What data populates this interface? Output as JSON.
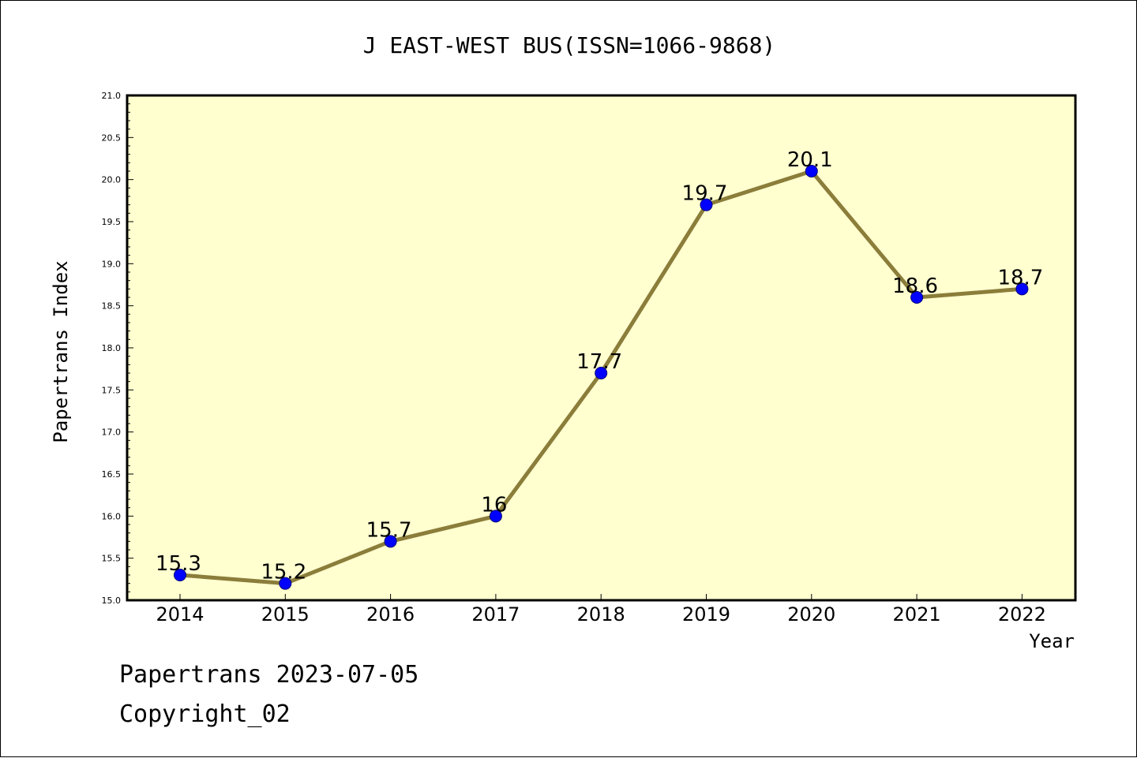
{
  "chart_data": {
    "type": "line",
    "title": "J EAST-WEST BUS(ISSN=1066-9868)",
    "xlabel": "Year",
    "ylabel": "Papertrans Index",
    "categories": [
      "2014",
      "2015",
      "2016",
      "2017",
      "2018",
      "2019",
      "2020",
      "2021",
      "2022"
    ],
    "values": [
      15.3,
      15.2,
      15.7,
      16,
      17.7,
      19.7,
      20.1,
      18.6,
      18.7
    ],
    "data_labels": [
      "15.3",
      "15.2",
      "15.7",
      "16",
      "17.7",
      "19.7",
      "20.1",
      "18.6",
      "18.7"
    ],
    "ylim": [
      15.0,
      21.0
    ],
    "yticks": [
      "15.0",
      "15.5",
      "16.0",
      "16.5",
      "17.0",
      "17.5",
      "18.0",
      "18.5",
      "19.0",
      "19.5",
      "20.0",
      "20.5",
      "21.0"
    ],
    "grid": false,
    "legend": "none",
    "colors": {
      "plot_background": "#ffffd0",
      "line": "#8b7d3a",
      "marker": "#0000ff",
      "marker_edge": "#00007a"
    }
  },
  "footer": {
    "line1": "Papertrans 2023-07-05",
    "line2": "Copyright_02"
  }
}
